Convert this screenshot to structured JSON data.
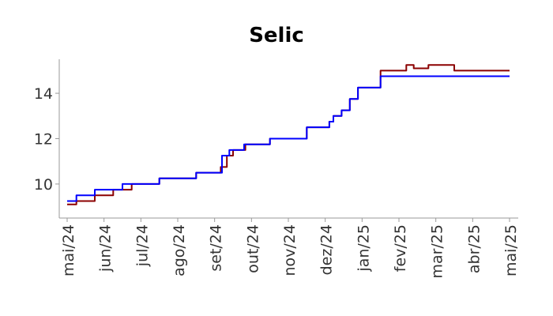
{
  "chart_data": {
    "type": "line",
    "title": "Selic",
    "xlabel": "",
    "ylabel": "",
    "ylim": [
      8.5,
      15.5
    ],
    "yticks": [
      10,
      12,
      14
    ],
    "ytick_labels": [
      "10",
      "12",
      "14"
    ],
    "x_tick_labels": [
      "mai/24",
      "jun/24",
      "jul/24",
      "ago/24",
      "set/24",
      "out/24",
      "nov/24",
      "dez/24",
      "jan/25",
      "fev/25",
      "mar/25",
      "abr/25",
      "mai/25"
    ],
    "grid": false,
    "legend": "none",
    "series": [
      {
        "color": "#8b0000",
        "points": [
          [
            "mai/24",
            9.1
          ],
          [
            "mai/24",
            9.25
          ],
          [
            "mai/24",
            9.25
          ],
          [
            "mai/24",
            9.5
          ],
          [
            "jun/24",
            9.5
          ],
          [
            "jun/24",
            9.75
          ],
          [
            "jun/24",
            9.75
          ],
          [
            "jun/24",
            10.0
          ],
          [
            "jul/24",
            10.0
          ],
          [
            "jul/24",
            10.25
          ],
          [
            "ago/24",
            10.25
          ],
          [
            "ago/24",
            10.5
          ],
          [
            "set/24",
            10.5
          ],
          [
            "set/24",
            10.75
          ],
          [
            "set/24",
            11.25
          ],
          [
            "set/24",
            11.5
          ],
          [
            "set/24",
            11.5
          ],
          [
            "set/24",
            11.75
          ],
          [
            "out/24",
            11.75
          ],
          [
            "out/24",
            12.0
          ],
          [
            "nov/24",
            12.0
          ],
          [
            "nov/24",
            12.5
          ],
          [
            "dez/24",
            12.5
          ],
          [
            "dez/24",
            12.75
          ],
          [
            "dez/24",
            13.0
          ],
          [
            "dez/24",
            13.0
          ],
          [
            "dez/24",
            13.25
          ],
          [
            "dez/24",
            13.25
          ],
          [
            "dez/24",
            13.75
          ],
          [
            "dez/24",
            13.75
          ],
          [
            "dez/24",
            14.25
          ],
          [
            "jan/25",
            14.25
          ],
          [
            "jan/25",
            15.0
          ],
          [
            "fev/25",
            15.0
          ],
          [
            "fev/25",
            15.25
          ],
          [
            "fev/25",
            15.1
          ],
          [
            "fev/25",
            15.1
          ],
          [
            "fev/25",
            15.25
          ],
          [
            "mar/25",
            15.25
          ],
          [
            "mar/25",
            15.0
          ],
          [
            "mai/25",
            15.0
          ]
        ]
      },
      {
        "color": "#0000ff",
        "points": [
          [
            "mai/24",
            9.25
          ],
          [
            "mai/24",
            9.5
          ],
          [
            "mai/24",
            9.5
          ],
          [
            "mai/24",
            9.75
          ],
          [
            "jun/24",
            9.75
          ],
          [
            "jun/24",
            10.0
          ],
          [
            "jul/24",
            10.0
          ],
          [
            "jul/24",
            10.25
          ],
          [
            "ago/24",
            10.25
          ],
          [
            "ago/24",
            10.5
          ],
          [
            "set/24",
            10.5
          ],
          [
            "set/24",
            11.25
          ],
          [
            "set/24",
            11.5
          ],
          [
            "set/24",
            11.5
          ],
          [
            "set/24",
            11.75
          ],
          [
            "out/24",
            11.75
          ],
          [
            "out/24",
            12.0
          ],
          [
            "nov/24",
            12.0
          ],
          [
            "nov/24",
            12.5
          ],
          [
            "dez/24",
            12.5
          ],
          [
            "dez/24",
            12.75
          ],
          [
            "dez/24",
            13.0
          ],
          [
            "dez/24",
            13.0
          ],
          [
            "dez/24",
            13.25
          ],
          [
            "dez/24",
            13.25
          ],
          [
            "dez/24",
            13.75
          ],
          [
            "dez/24",
            13.75
          ],
          [
            "dez/24",
            14.25
          ],
          [
            "jan/25",
            14.25
          ],
          [
            "jan/25",
            14.75
          ],
          [
            "mai/25",
            14.75
          ]
        ]
      }
    ]
  }
}
